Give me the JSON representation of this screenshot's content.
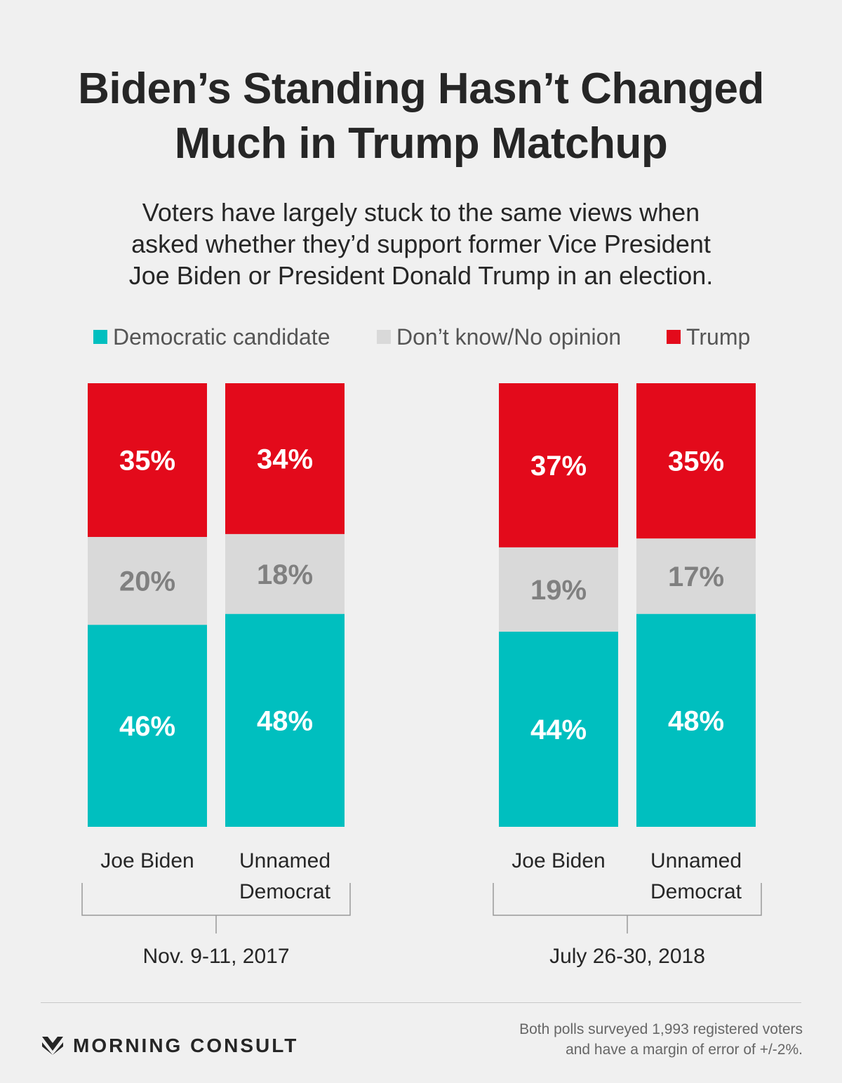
{
  "title": {
    "line1": "Biden’s Standing Hasn’t Changed",
    "line2": "Much in Trump Matchup"
  },
  "subtitle": {
    "line1": "Voters have largely stuck to the same views when",
    "line2": "asked whether they’d support former Vice President",
    "line3": "Joe Biden or President Donald Trump in an election."
  },
  "legend": [
    {
      "label": "Democratic candidate",
      "color": "#00bfbf"
    },
    {
      "label": "Don’t know/No opinion",
      "color": "#d9d9d9"
    },
    {
      "label": "Trump",
      "color": "#e30a1b"
    }
  ],
  "chart_data": {
    "type": "bar",
    "stacked": true,
    "unit": "%",
    "groups": [
      {
        "date": "Nov. 9-11, 2017",
        "bars": [
          {
            "label_line1": "Joe Biden",
            "label_line2": "",
            "democratic": 46,
            "no_opinion": 20,
            "trump": 35
          },
          {
            "label_line1": "Unnamed",
            "label_line2": "Democrat",
            "democratic": 48,
            "no_opinion": 18,
            "trump": 34
          }
        ]
      },
      {
        "date": "July 26-30, 2018",
        "bars": [
          {
            "label_line1": "Joe Biden",
            "label_line2": "",
            "democratic": 44,
            "no_opinion": 19,
            "trump": 37
          },
          {
            "label_line1": "Unnamed",
            "label_line2": "Democrat",
            "democratic": 48,
            "no_opinion": 17,
            "trump": 35
          }
        ]
      }
    ],
    "series": [
      {
        "name": "Democratic candidate",
        "key": "democratic",
        "color": "#00bfbf",
        "label_color": "#ffffff"
      },
      {
        "name": "Don’t know/No opinion",
        "key": "no_opinion",
        "color": "#d9d9d9",
        "label_color": "#808080"
      },
      {
        "name": "Trump",
        "key": "trump",
        "color": "#e30a1b",
        "label_color": "#ffffff"
      }
    ]
  },
  "footer": {
    "brand": "MORNING CONSULT",
    "note_line1": "Both polls surveyed 1,993 registered voters",
    "note_line2": "and have a margin of error of +/-2%."
  }
}
